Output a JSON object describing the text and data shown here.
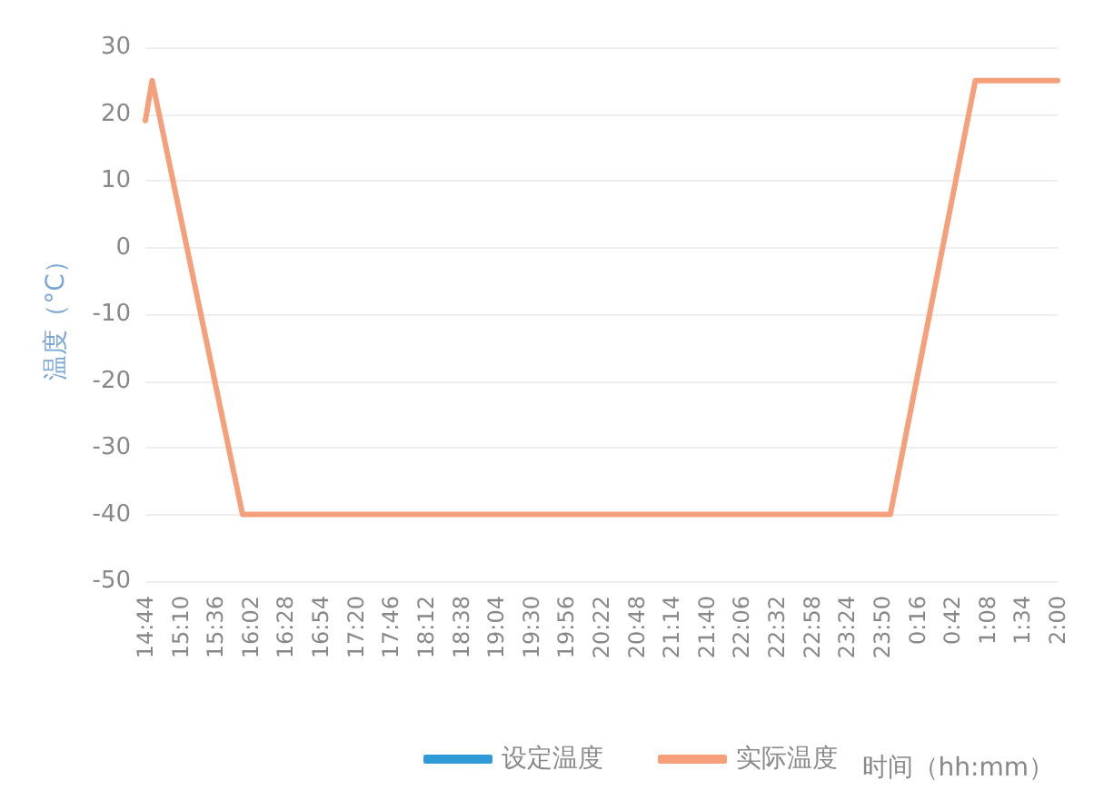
{
  "chart_data": {
    "type": "line",
    "ylabel": "温度（°C）",
    "xlabel": "时间（hh:mm）",
    "x": [
      "--01-01T14:44",
      "--01-01T14:49",
      "--01-01T15:56",
      "--01-01T23:56",
      "--01-02T00:59",
      "--01-02T02:00"
    ],
    "series": [
      {
        "name": "设定温度",
        "color": "#2e9bd6",
        "values": [
          null,
          null,
          null,
          null,
          null,
          null
        ]
      },
      {
        "name": "实际温度",
        "color": "#f5a07a",
        "values": [
          19,
          25,
          -40,
          -40,
          25,
          25
        ]
      }
    ],
    "ylim": [
      -50,
      30
    ],
    "yticks": [
      -50,
      -40,
      -30,
      -20,
      -10,
      0,
      10,
      20,
      30
    ],
    "xlim": [
      "--01-01T14:44",
      "--01-02T02:00"
    ],
    "xticks": [
      {
        "value": "--01-01T14:44",
        "label": "14:44"
      },
      {
        "value": "--01-01T15:10",
        "label": "15:10"
      },
      {
        "value": "--01-01T15:36",
        "label": "15:36"
      },
      {
        "value": "--01-01T16:02",
        "label": "16:02"
      },
      {
        "value": "--01-01T16:28",
        "label": "16:28"
      },
      {
        "value": "--01-01T16:54",
        "label": "16:54"
      },
      {
        "value": "--01-01T17:20",
        "label": "17:20"
      },
      {
        "value": "--01-01T17:46",
        "label": "17:46"
      },
      {
        "value": "--01-01T18:12",
        "label": "18:12"
      },
      {
        "value": "--01-01T18:38",
        "label": "18:38"
      },
      {
        "value": "--01-01T19:04",
        "label": "19:04"
      },
      {
        "value": "--01-01T19:30",
        "label": "19:30"
      },
      {
        "value": "--01-01T19:56",
        "label": "19:56"
      },
      {
        "value": "--01-01T20:22",
        "label": "20:22"
      },
      {
        "value": "--01-01T20:48",
        "label": "20:48"
      },
      {
        "value": "--01-01T21:14",
        "label": "21:14"
      },
      {
        "value": "--01-01T21:40",
        "label": "21:40"
      },
      {
        "value": "--01-01T22:06",
        "label": "22:06"
      },
      {
        "value": "--01-01T22:32",
        "label": "22:32"
      },
      {
        "value": "--01-01T22:58",
        "label": "22:58"
      },
      {
        "value": "--01-01T23:24",
        "label": "23:24"
      },
      {
        "value": "--01-01T23:50",
        "label": "23:50"
      },
      {
        "value": "--01-02T00:16",
        "label": "0:16"
      },
      {
        "value": "--01-02T00:42",
        "label": "0:42"
      },
      {
        "value": "--01-02T01:08",
        "label": "1:08"
      },
      {
        "value": "--01-02T01:34",
        "label": "1:34"
      },
      {
        "value": "--01-02T02:00",
        "label": "2:00"
      }
    ],
    "grid": "y",
    "legend": "bottom",
    "marker": "none",
    "line_style": "solid"
  }
}
